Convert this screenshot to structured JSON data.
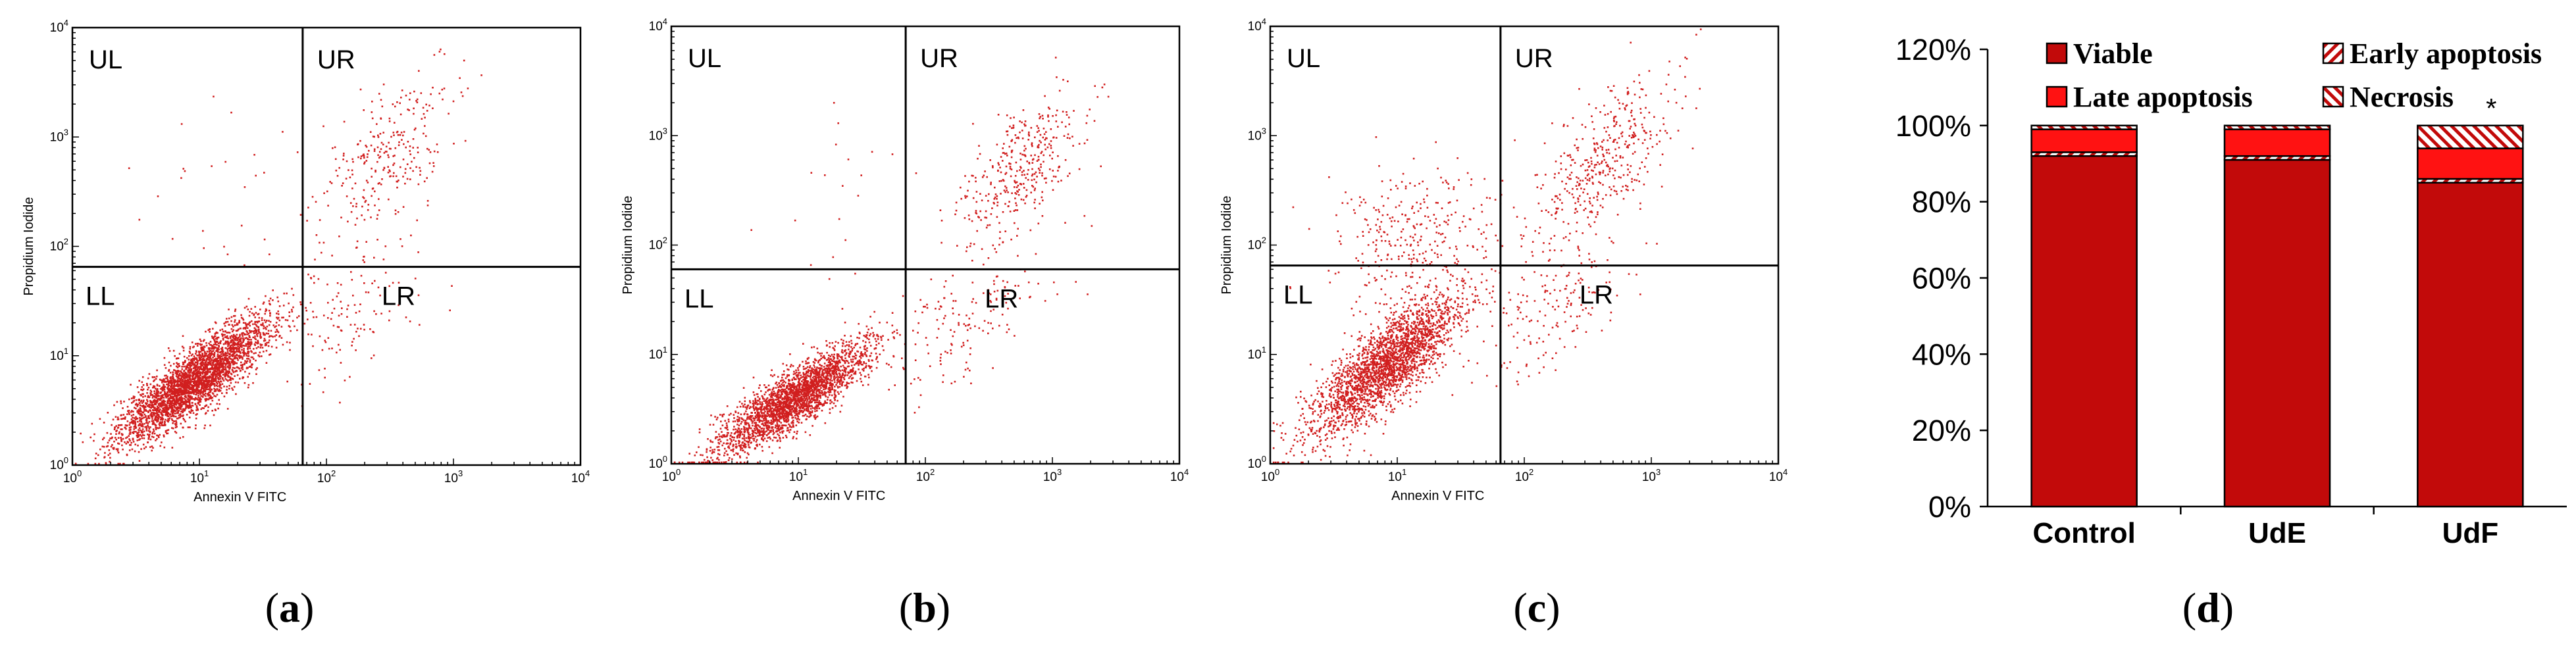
{
  "figure": {
    "panel_labels": [
      "(a)",
      "(b)",
      "(c)",
      "(d)"
    ],
    "colors": {
      "dot": "#d11f1f",
      "viable": "#c20a0a",
      "late": "#ff1212",
      "axis": "#000000"
    }
  },
  "chart_data": [
    {
      "type": "scatter",
      "panel": "(a)",
      "xlabel": "Annexin V FITC",
      "ylabel": "Propidium Iodide",
      "xscale": "log",
      "yscale": "log",
      "xlim": [
        1,
        10000
      ],
      "ylim": [
        1,
        10000
      ],
      "x_tick_labels": [
        "10^0",
        "10^1",
        "10^2",
        "10^3",
        "10^4"
      ],
      "y_tick_labels": [
        "10^0",
        "10^1",
        "10^2",
        "10^3",
        "10^4"
      ],
      "gates": {
        "x": 65,
        "y": 65
      },
      "quadrant_labels": [
        "UL",
        "UR",
        "LL",
        "LR"
      ],
      "populations": [
        {
          "name": "viable",
          "count": 3200,
          "center": [
            9,
            6
          ],
          "spread": [
            0.3,
            0.28
          ],
          "correlation": 0.85
        },
        {
          "name": "early apoptotic",
          "count": 130,
          "center": [
            140,
            25
          ],
          "spread": [
            0.3,
            0.35
          ],
          "correlation": 0.5
        },
        {
          "name": "late apoptotic",
          "count": 280,
          "center": [
            320,
            700
          ],
          "spread": [
            0.28,
            0.35
          ],
          "correlation": 0.5
        },
        {
          "name": "necrotic",
          "count": 25,
          "center": [
            15,
            300
          ],
          "spread": [
            0.35,
            0.4
          ],
          "correlation": 0
        }
      ]
    },
    {
      "type": "scatter",
      "panel": "(b)",
      "xlabel": "Annexin V FITC",
      "ylabel": "Propidium Iodide",
      "xscale": "log",
      "yscale": "log",
      "xlim": [
        1,
        10000
      ],
      "ylim": [
        1,
        10000
      ],
      "x_tick_labels": [
        "10^0",
        "10^1",
        "10^2",
        "10^3",
        "10^4"
      ],
      "y_tick_labels": [
        "10^0",
        "10^1",
        "10^2",
        "10^3",
        "10^4"
      ],
      "gates": {
        "x": 70,
        "y": 60
      },
      "quadrant_labels": [
        "UL",
        "UR",
        "LL",
        "LR"
      ],
      "populations": [
        {
          "name": "viable",
          "count": 2600,
          "center": [
            9,
            4
          ],
          "spread": [
            0.3,
            0.25
          ],
          "correlation": 0.85
        },
        {
          "name": "early apoptotic",
          "count": 160,
          "center": [
            200,
            20
          ],
          "spread": [
            0.3,
            0.35
          ],
          "correlation": 0.6
        },
        {
          "name": "late apoptotic",
          "count": 380,
          "center": [
            550,
            500
          ],
          "spread": [
            0.25,
            0.35
          ],
          "correlation": 0.6
        },
        {
          "name": "necrotic",
          "count": 20,
          "center": [
            18,
            250
          ],
          "spread": [
            0.3,
            0.4
          ],
          "correlation": 0
        }
      ]
    },
    {
      "type": "scatter",
      "panel": "(c)",
      "xlabel": "Annexin V FITC",
      "ylabel": "Propidium Iodide",
      "xscale": "log",
      "yscale": "log",
      "xlim": [
        1,
        10000
      ],
      "ylim": [
        1,
        10000
      ],
      "x_tick_labels": [
        "10^0",
        "10^1",
        "10^2",
        "10^3",
        "10^4"
      ],
      "y_tick_labels": [
        "10^0",
        "10^1",
        "10^2",
        "10^3",
        "10^4"
      ],
      "gates": {
        "x": 65,
        "y": 65
      },
      "quadrant_labels": [
        "UL",
        "UR",
        "LL",
        "LR"
      ],
      "populations": [
        {
          "name": "viable",
          "count": 2400,
          "center": [
            8,
            8
          ],
          "spread": [
            0.3,
            0.32
          ],
          "correlation": 0.8
        },
        {
          "name": "early apoptotic",
          "count": 180,
          "center": [
            180,
            30
          ],
          "spread": [
            0.3,
            0.35
          ],
          "correlation": 0.5
        },
        {
          "name": "late apoptotic",
          "count": 420,
          "center": [
            400,
            600
          ],
          "spread": [
            0.3,
            0.38
          ],
          "correlation": 0.6
        },
        {
          "name": "necrotic",
          "count": 330,
          "center": [
            12,
            120
          ],
          "spread": [
            0.32,
            0.35
          ],
          "correlation": 0.2
        }
      ]
    },
    {
      "type": "bar",
      "panel": "(d)",
      "stacked": true,
      "categories": [
        "Control",
        "UdE",
        "UdF"
      ],
      "series": [
        {
          "name": "Viable",
          "values": [
            92,
            91,
            85
          ],
          "pattern": "solid-dark"
        },
        {
          "name": "Early apoptosis",
          "values": [
            1,
            1,
            1
          ],
          "pattern": "diagonal-hatch"
        },
        {
          "name": "Late apoptosis",
          "values": [
            6,
            7,
            8
          ],
          "pattern": "solid-red"
        },
        {
          "name": "Necrosis",
          "values": [
            1,
            1,
            6
          ],
          "pattern": "back-diagonal-hatch"
        }
      ],
      "ylim": [
        0,
        120
      ],
      "ytick_labels": [
        "0%",
        "20%",
        "40%",
        "60%",
        "80%",
        "100%",
        "120%"
      ],
      "significance_marker": {
        "category": "UdF",
        "text": "*"
      },
      "legend": [
        "Viable",
        "Early apoptosis",
        "Late apoptosis",
        "Necrosis"
      ]
    }
  ]
}
